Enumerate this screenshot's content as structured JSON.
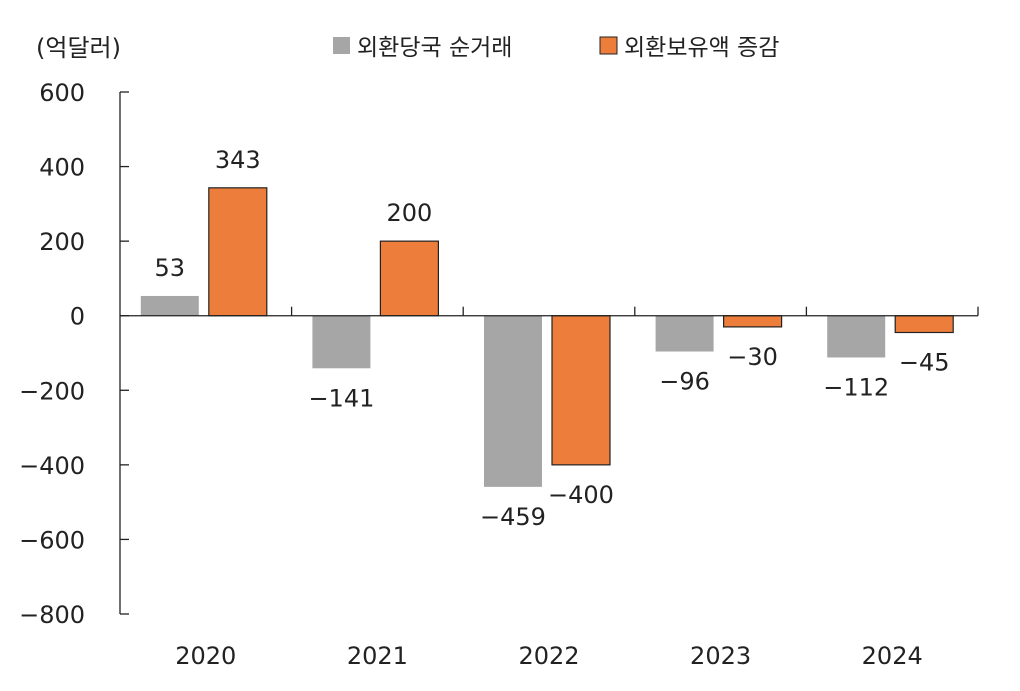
{
  "chart_data": {
    "type": "bar",
    "unit_label": "(억달러)",
    "categories": [
      "2020",
      "2021",
      "2022",
      "2023",
      "2024"
    ],
    "series": [
      {
        "name": "외환당국 순거래",
        "color": "#a6a6a6",
        "values": [
          53,
          -141,
          -459,
          -96,
          -112
        ]
      },
      {
        "name": "외환보유액 증감",
        "color": "#ed7d3b",
        "values": [
          343,
          200,
          -400,
          -30,
          -45
        ]
      }
    ],
    "ylim": [
      -800,
      600
    ],
    "yticks": [
      600,
      400,
      200,
      0,
      -200,
      -400,
      -600,
      -800
    ],
    "legend_position": "top",
    "grid": false
  }
}
